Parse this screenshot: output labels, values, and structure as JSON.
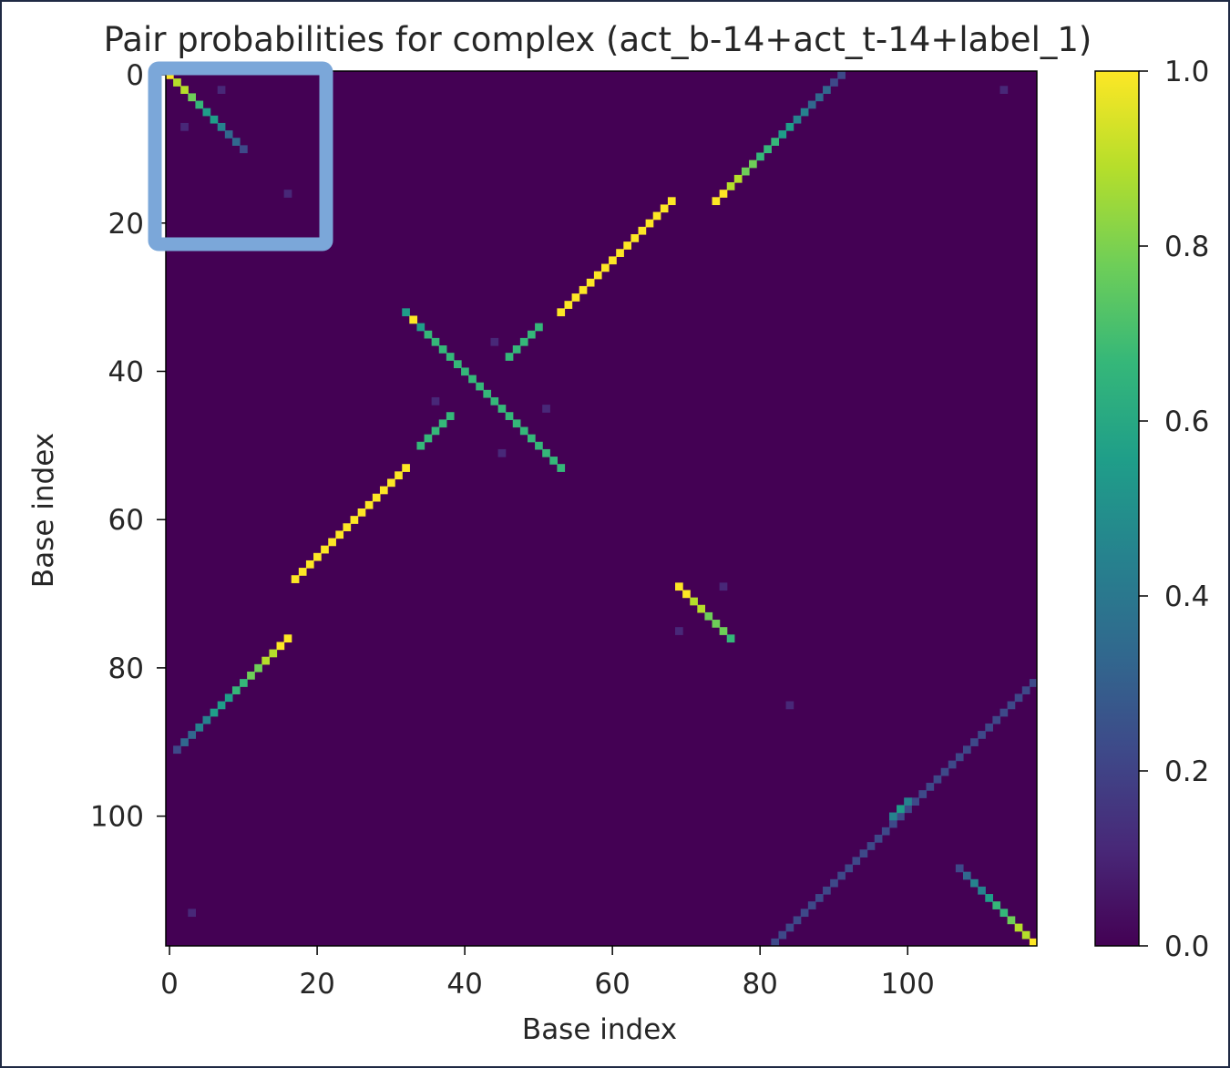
{
  "chart_data": {
    "type": "heatmap",
    "title": "Pair probabilities for complex (act_b-14+act_t-14+label_1)",
    "xlabel": "Base index",
    "ylabel": "Base index",
    "n": 118,
    "xlim": [
      0,
      117
    ],
    "ylim": [
      117,
      0
    ],
    "x_ticks": [
      "0",
      "20",
      "40",
      "60",
      "80",
      "100"
    ],
    "y_ticks": [
      "0",
      "20",
      "40",
      "60",
      "80",
      "100"
    ],
    "colorbar": {
      "range": [
        0.0,
        1.0
      ],
      "ticks": [
        "0.0",
        "0.2",
        "0.4",
        "0.6",
        "0.8",
        "1.0"
      ],
      "colormap": "viridis"
    },
    "background_value": 0.0,
    "highlight_box": {
      "from": [
        0,
        0
      ],
      "to": [
        20,
        20
      ],
      "color": "#7ba7d9"
    },
    "colors": {
      "cmap": [
        "#440154",
        "#482878",
        "#3e4989",
        "#31688e",
        "#26828e",
        "#1f9e89",
        "#35b779",
        "#6ece58",
        "#b5de2b",
        "#fde725"
      ]
    },
    "segments": [
      {
        "name": "anti-diagonal-1",
        "r0": 0,
        "c0": 91,
        "r1": 17,
        "c1": 74,
        "p0": 0.2,
        "p1": 1.0
      },
      {
        "name": "anti-diagonal-2",
        "r0": 17,
        "c0": 68,
        "r1": 32,
        "c1": 53,
        "p0": 1.0,
        "p1": 1.0
      },
      {
        "name": "anti-diagonal-3",
        "r0": 34,
        "c0": 50,
        "r1": 38,
        "c1": 46,
        "p0": 0.7,
        "p1": 0.7
      },
      {
        "name": "anti-diagonal-4",
        "r0": 46,
        "c0": 38,
        "r1": 50,
        "c1": 34,
        "p0": 0.7,
        "p1": 0.7
      },
      {
        "name": "anti-diagonal-5",
        "r0": 53,
        "c0": 32,
        "r1": 68,
        "c1": 17,
        "p0": 1.0,
        "p1": 1.0
      },
      {
        "name": "anti-diagonal-6",
        "r0": 76,
        "c0": 16,
        "r1": 91,
        "c1": 1,
        "p0": 1.0,
        "p1": 0.25
      },
      {
        "name": "anti-diagonal-7",
        "r0": 82,
        "c0": 117,
        "r1": 117,
        "c1": 82,
        "p0": 0.25,
        "p1": 0.25
      },
      {
        "name": "main-diagonal-1",
        "r0": 0,
        "c0": 0,
        "r1": 10,
        "c1": 10,
        "p0": 1.0,
        "p1": 0.2
      },
      {
        "name": "main-diagonal-2",
        "r0": 32,
        "c0": 32,
        "r1": 53,
        "c1": 53,
        "p0": 0.6,
        "p1": 0.7
      },
      {
        "name": "main-diagonal-3",
        "r0": 69,
        "c0": 69,
        "r1": 76,
        "c1": 76,
        "p0": 1.0,
        "p1": 0.7
      },
      {
        "name": "main-diagonal-4",
        "r0": 107,
        "c0": 107,
        "r1": 117,
        "c1": 117,
        "p0": 0.25,
        "p1": 1.0
      }
    ],
    "spots": [
      {
        "r": 99,
        "c": 99,
        "p": 0.5
      },
      {
        "r": 98,
        "c": 100,
        "p": 0.4
      },
      {
        "r": 100,
        "c": 98,
        "p": 0.4
      },
      {
        "r": 33,
        "c": 33,
        "p": 1.0
      },
      {
        "r": 16,
        "c": 16,
        "p": 0.15
      },
      {
        "r": 7,
        "c": 2,
        "p": 0.1
      },
      {
        "r": 2,
        "c": 7,
        "p": 0.1
      },
      {
        "r": 36,
        "c": 44,
        "p": 0.12
      },
      {
        "r": 44,
        "c": 36,
        "p": 0.12
      },
      {
        "r": 51,
        "c": 45,
        "p": 0.08
      },
      {
        "r": 45,
        "c": 51,
        "p": 0.08
      },
      {
        "r": 69,
        "c": 75,
        "p": 0.12
      },
      {
        "r": 75,
        "c": 69,
        "p": 0.12
      },
      {
        "r": 85,
        "c": 84,
        "p": 0.06
      },
      {
        "r": 113,
        "c": 3,
        "p": 0.06
      },
      {
        "r": 2,
        "c": 113,
        "p": 0.06
      }
    ]
  }
}
